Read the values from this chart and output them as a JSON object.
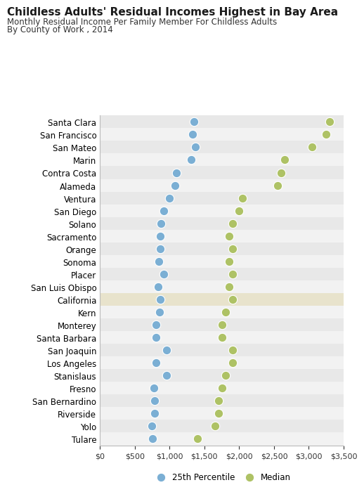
{
  "title": "Childless Adults' Residual Incomes Highest in Bay Area",
  "subtitle1": "Monthly Residual Income Per Family Member For Childless Adults",
  "subtitle2": "By County of Work , 2014",
  "xlim": [
    0,
    3500
  ],
  "xticks": [
    0,
    500,
    1000,
    1500,
    2000,
    2500,
    3000,
    3500
  ],
  "xticklabels": [
    "$0",
    "$500",
    "$1,000",
    "$1,500",
    "$2,000",
    "$2,500",
    "$3,000",
    "$3,500"
  ],
  "counties": [
    "Santa Clara",
    "San Francisco",
    "San Mateo",
    "Marin",
    "Contra Costa",
    "Alameda",
    "Ventura",
    "San Diego",
    "Solano",
    "Sacramento",
    "Orange",
    "Sonoma",
    "Placer",
    "San Luis Obispo",
    "California",
    "Kern",
    "Monterey",
    "Santa Barbara",
    "San Joaquin",
    "Los Angeles",
    "Stanislaus",
    "Fresno",
    "San Bernardino",
    "Riverside",
    "Yolo",
    "Tulare"
  ],
  "percentile_25": [
    1350,
    1330,
    1370,
    1310,
    1100,
    1080,
    1000,
    920,
    880,
    870,
    870,
    850,
    920,
    840,
    870,
    860,
    810,
    800,
    960,
    810,
    960,
    770,
    780,
    780,
    740,
    750
  ],
  "median": [
    3300,
    3250,
    3050,
    2650,
    2600,
    2550,
    2050,
    2000,
    1900,
    1850,
    1900,
    1850,
    1900,
    1850,
    1900,
    1800,
    1750,
    1750,
    1900,
    1900,
    1800,
    1750,
    1700,
    1700,
    1650,
    1400
  ],
  "dot_color_25": "#7bafd4",
  "dot_color_median": "#aec265",
  "dot_size": 80,
  "row_bg_even": "#e8e8e8",
  "row_bg_odd": "#f2f2f2",
  "california_bg": "#e8e3cc",
  "bg_color": "#ffffff",
  "plot_bg": "#ffffff",
  "legend_label_25": "25th Percentile",
  "legend_label_median": "Median",
  "title_fontsize": 11,
  "subtitle_fontsize": 8.5,
  "tick_fontsize": 8,
  "ylabel_fontsize": 8.5
}
